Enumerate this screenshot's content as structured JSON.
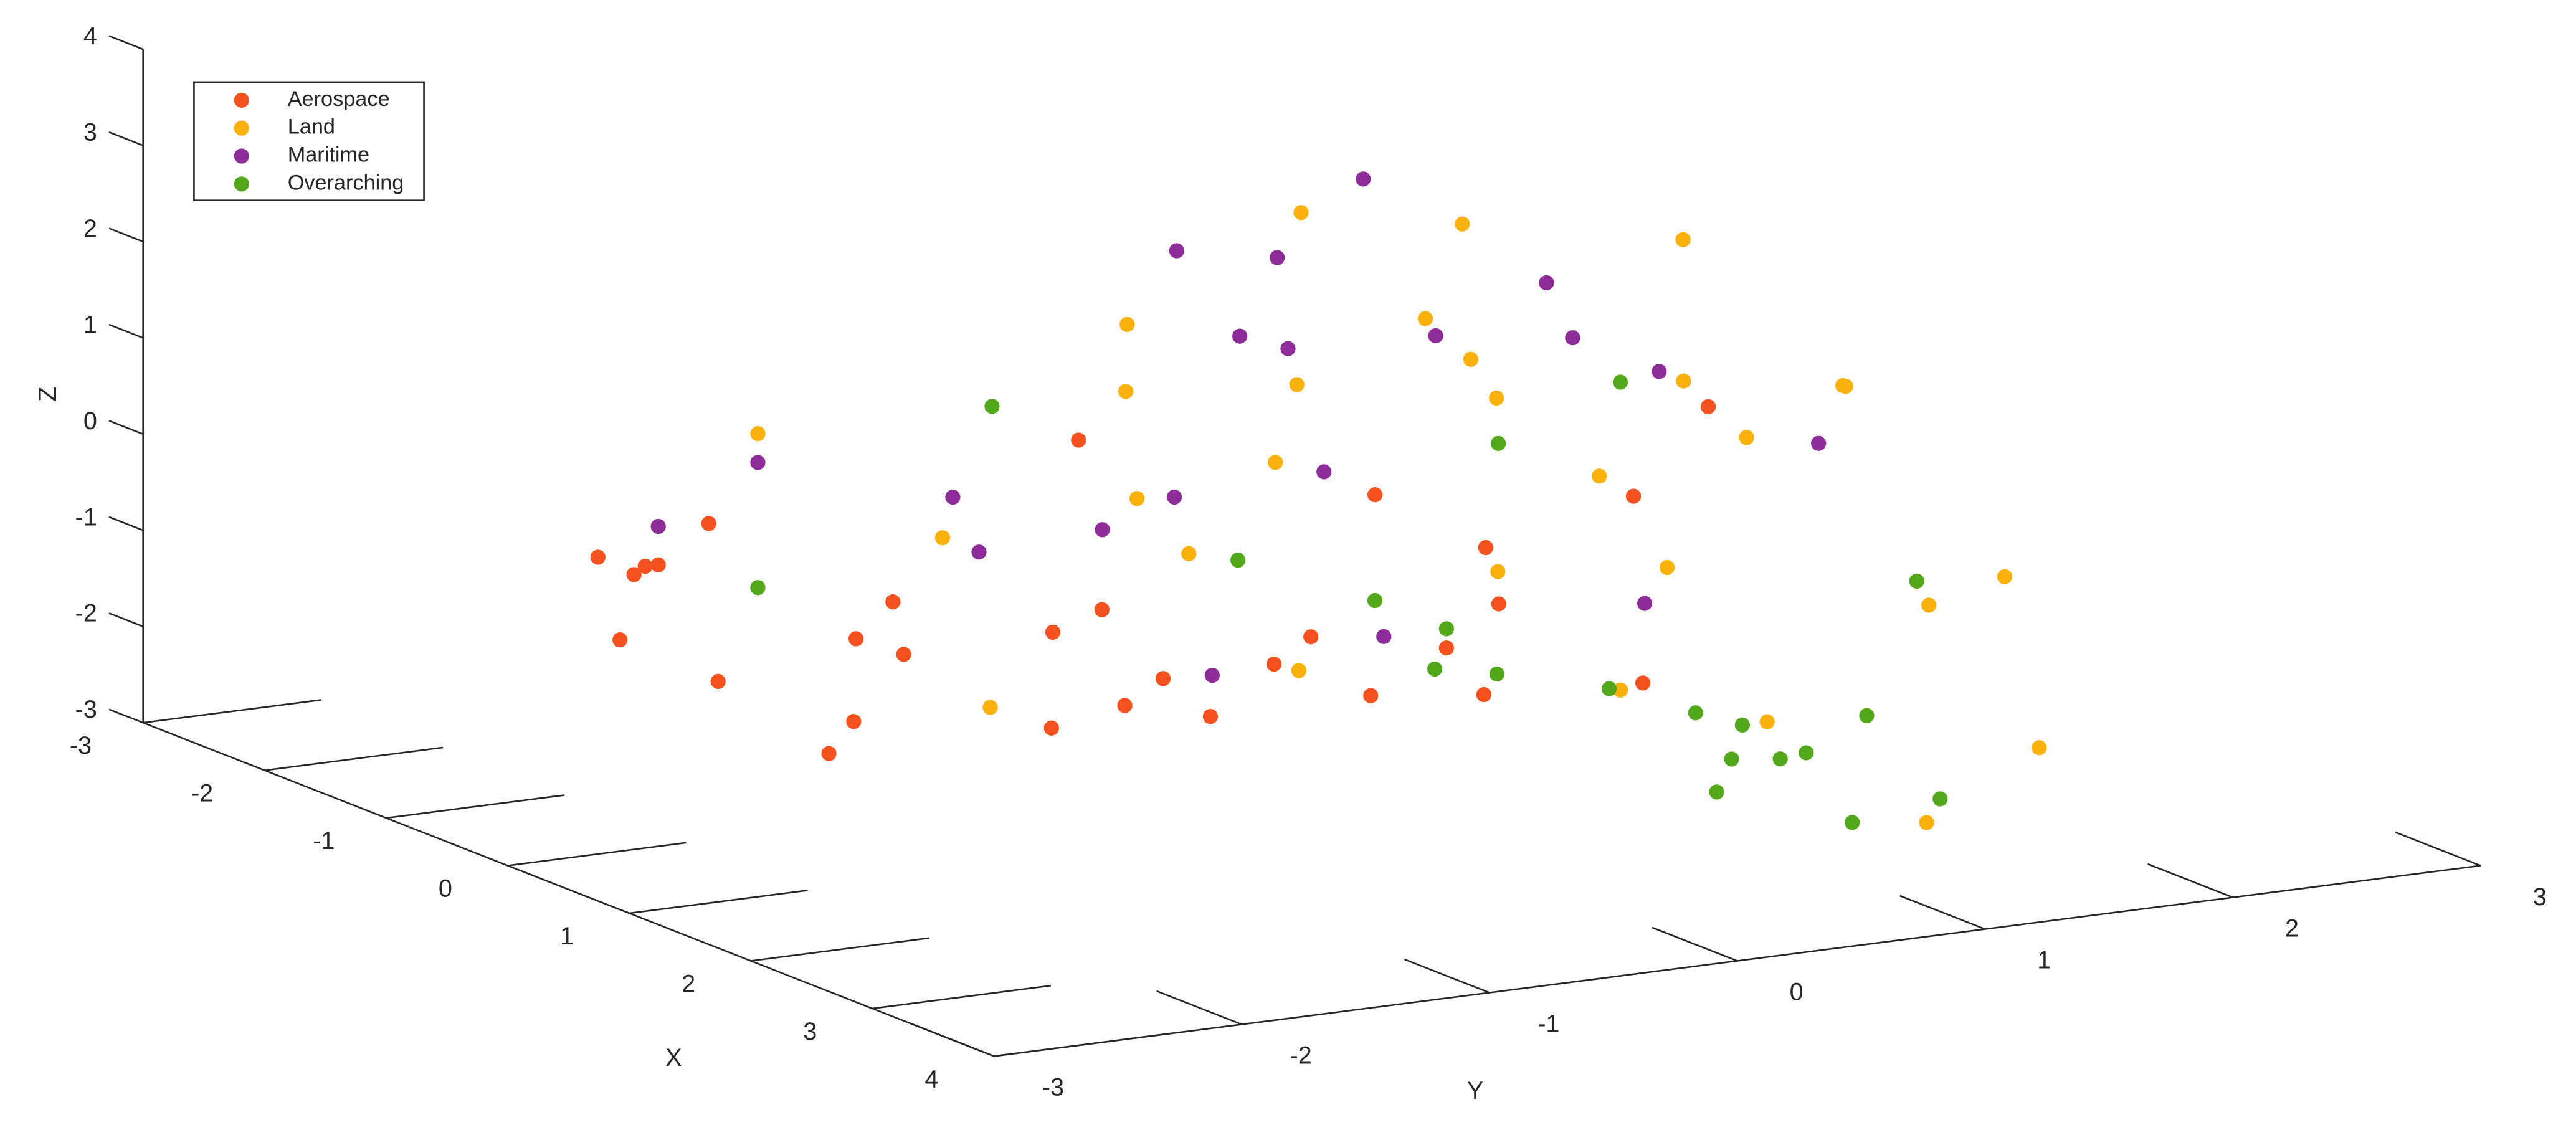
{
  "chart_data": {
    "type": "scatter3d",
    "xlabel": "X",
    "ylabel": "Y",
    "zlabel": "Z",
    "xlim": [
      -3,
      4
    ],
    "ylim": [
      -3,
      3
    ],
    "zlim": [
      -3,
      4
    ],
    "xticks": [
      -3,
      -2,
      -1,
      0,
      1,
      2,
      3,
      4
    ],
    "yticks": [
      -3,
      -2,
      -1,
      0,
      1,
      2,
      3
    ],
    "zticks": [
      -3,
      -2,
      -1,
      0,
      1,
      2,
      3,
      4
    ],
    "legend": "upper left",
    "series": [
      {
        "name": "Aerospace",
        "color": "#f4511e",
        "x": [
          0,
          -0.5,
          0.5,
          1,
          -1,
          0.2,
          0.8,
          -0.3,
          0.4,
          1.2,
          -0.8,
          0,
          0.6,
          1.5,
          -1.2,
          0.3,
          0.9,
          -0.4,
          0.1,
          0.7,
          1.1,
          -0.6,
          0.2,
          0.5,
          1.8,
          -1.5,
          0.4,
          0,
          2,
          -0.5
        ],
        "y": [
          -0.8,
          -1.2,
          -0.6,
          -1,
          -2,
          -1.5,
          -0.3,
          -2.4,
          -1.8,
          0.2,
          -2,
          0.5,
          -1.1,
          -0.9,
          -1.6,
          0.8,
          -0.2,
          -0.5,
          -2.2,
          1.2,
          0.4,
          -1.3,
          -0.7,
          1.6,
          -0.4,
          -1.9,
          -1.9,
          1,
          0.6,
          -2.2
        ],
        "z": [
          -1.3,
          -1.1,
          -1.6,
          -1.5,
          -0.8,
          -1.2,
          -1.4,
          -1,
          -1.7,
          -1.2,
          -0.6,
          -0.3,
          -1.9,
          -1.4,
          -0.5,
          -0.8,
          -1.1,
          0.4,
          -1.3,
          -0.2,
          -1.8,
          -1.5,
          -1,
          0.5,
          -1.2,
          -0.9,
          -2,
          -1.6,
          -1.3,
          -0.4
        ]
      },
      {
        "name": "Land",
        "color": "#fbb10c",
        "x": [
          -1,
          0,
          1,
          0.5,
          -0.5,
          1.5,
          2,
          0.2,
          -0.3,
          0.8,
          1.2,
          -0.8,
          0.4,
          1.8,
          0,
          0.6,
          -0.2,
          1,
          2.2,
          0.3,
          -0.6,
          1.4,
          0.9,
          0.1,
          1.6,
          -0.4,
          0.7,
          2.5,
          1.1,
          0
        ],
        "y": [
          -1.5,
          -0.5,
          0.5,
          1.5,
          -1,
          2,
          2.2,
          0,
          1,
          -0.2,
          1.8,
          -2,
          0.8,
          1.2,
          2.4,
          -0.8,
          0.3,
          1,
          0.6,
          -1.2,
          1.7,
          0.2,
          2.6,
          -0.3,
          -0.6,
          0.9,
          1.4,
          1.5,
          -1,
          2
        ],
        "z": [
          0.5,
          1.8,
          1.2,
          0.8,
          -0.5,
          -1.2,
          -2.5,
          0.3,
          2.2,
          -1.5,
          1,
          -0.2,
          -1,
          -2,
          0.2,
          1.5,
          2.6,
          -2,
          0,
          -1.8,
          -0.8,
          1.9,
          -1.4,
          -0.6,
          2,
          1.2,
          2.4,
          -2.8,
          0.7,
          -0.2
        ]
      },
      {
        "name": "Maritime",
        "color": "#8e2c9a",
        "x": [
          -1,
          0,
          0.5,
          -0.5,
          1,
          0.2,
          -0.2,
          0.8,
          1.5,
          -0.8,
          0.3,
          0.6,
          -0.3,
          1.2,
          0,
          0.4,
          -0.6,
          1,
          0.1,
          0.7
        ],
        "y": [
          -1.5,
          -0.3,
          0.5,
          0.2,
          -0.8,
          1.2,
          -1,
          0.8,
          -0.2,
          -2,
          1.5,
          0,
          0.6,
          1,
          -0.6,
          -1.4,
          0.4,
          1.8,
          0.1,
          -0.5
        ],
        "z": [
          0.2,
          2.5,
          1.6,
          1.2,
          0.6,
          1.2,
          -0.5,
          2.2,
          -0.8,
          -0.2,
          0.8,
          0.4,
          2.8,
          -1,
          -0.3,
          0.5,
          1.9,
          0.3,
          1.4,
          -1.5
        ]
      },
      {
        "name": "Overarching",
        "color": "#52a81a",
        "x": [
          1,
          1.5,
          0.5,
          2,
          0.8,
          1.2,
          -0.5,
          0,
          1.8,
          2.5,
          0.3,
          1,
          1.4,
          0.6,
          2.2,
          -1,
          0.9,
          1.6,
          0.2,
          1.1
        ],
        "y": [
          1.75,
          1.4,
          1.2,
          1.8,
          0.6,
          0.2,
          -0.8,
          0.5,
          1.1,
          1.2,
          -0.2,
          1,
          2,
          1.5,
          0.8,
          -1.5,
          0.3,
          1.7,
          0.9,
          1.4
        ],
        "z": [
          -2.9,
          -2.6,
          -2.3,
          -2.9,
          -1.8,
          -1,
          0.8,
          -1.4,
          -2,
          -2.7,
          -0.6,
          1.2,
          -1,
          -2.6,
          -2.4,
          -1.1,
          -1.6,
          -2.2,
          0.2,
          -2.8
        ]
      }
    ]
  }
}
